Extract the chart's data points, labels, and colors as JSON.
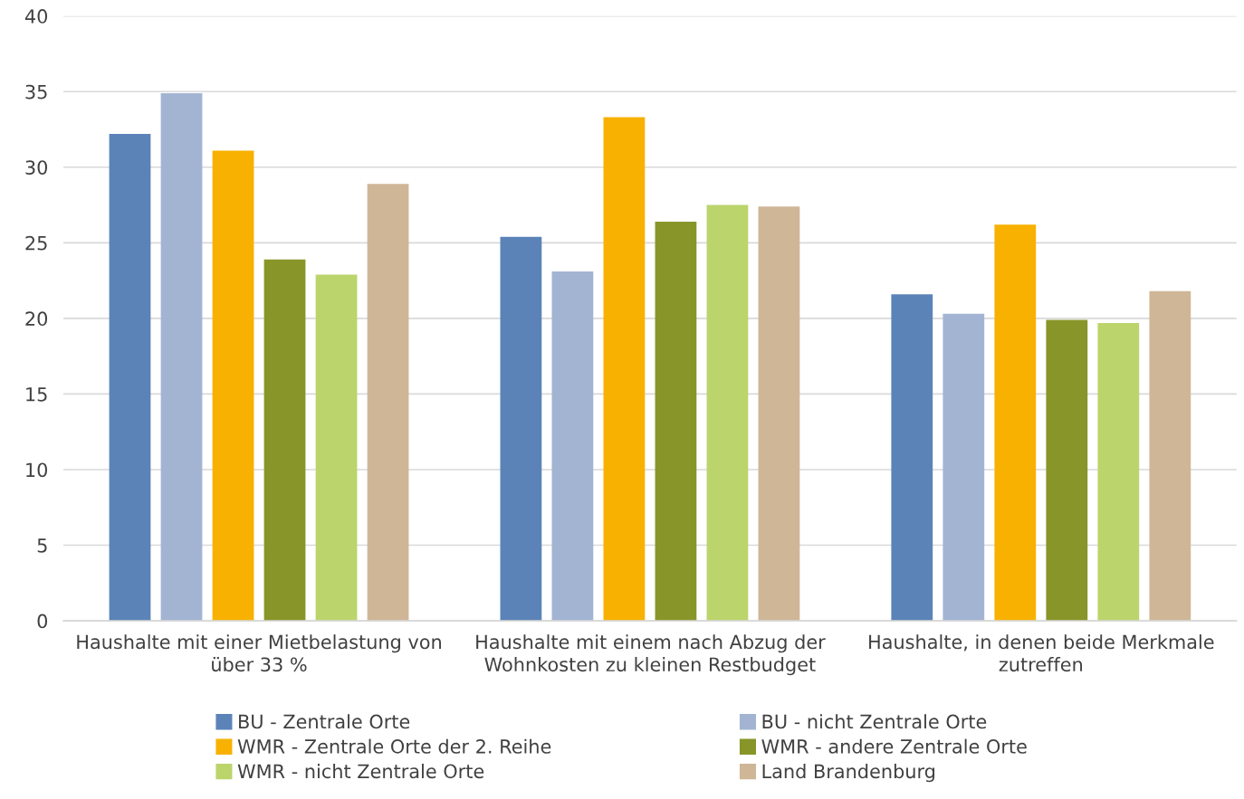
{
  "chart_data": {
    "type": "bar",
    "categories": [
      "Haushalte mit einer Mietbelastung von über 33 %",
      "Haushalte mit einem nach Abzug der Wohnkosten zu kleinen Restbudget",
      "Haushalte, in denen beide Merkmale zutreffen"
    ],
    "series": [
      {
        "name": "BU - Zentrale Orte",
        "color": "#5b83b8",
        "values": [
          32.2,
          25.4,
          21.6
        ]
      },
      {
        "name": "BU - nicht Zentrale Orte",
        "color": "#a3b4d3",
        "values": [
          34.9,
          23.1,
          20.3
        ]
      },
      {
        "name": "WMR - Zentrale Orte der 2. Reihe",
        "color": "#f8b100",
        "values": [
          31.1,
          33.3,
          26.2
        ]
      },
      {
        "name": "WMR - andere Zentrale Orte",
        "color": "#889529",
        "values": [
          23.9,
          26.4,
          19.9
        ]
      },
      {
        "name": "WMR - nicht Zentrale Orte",
        "color": "#bbd46c",
        "values": [
          22.9,
          27.5,
          19.7
        ]
      },
      {
        "name": "Land Brandenburg",
        "color": "#cfb697",
        "values": [
          28.9,
          27.4,
          21.8
        ]
      }
    ],
    "ylim": [
      0,
      40
    ],
    "yticks": [
      0,
      5,
      10,
      15,
      20,
      25,
      30,
      35,
      40
    ],
    "grid": "y",
    "legend": "bottom"
  }
}
